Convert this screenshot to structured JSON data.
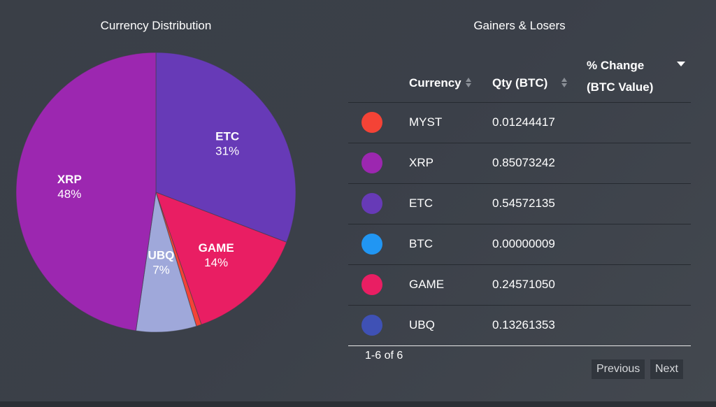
{
  "pie_panel": {
    "title": "Currency Distribution"
  },
  "table_panel": {
    "title": "Gainers & Losers",
    "columns": {
      "currency": "Currency",
      "qty": "Qty (BTC)",
      "change_line1": "% Change",
      "change_line2": "(BTC Value)"
    },
    "rows": [
      {
        "currency": "MYST",
        "qty": "0.01244417",
        "color": "#f44336"
      },
      {
        "currency": "XRP",
        "qty": "0.85073242",
        "color": "#9c27b0"
      },
      {
        "currency": "ETC",
        "qty": "0.54572135",
        "color": "#673ab7"
      },
      {
        "currency": "BTC",
        "qty": "0.00000009",
        "color": "#2196f3"
      },
      {
        "currency": "GAME",
        "qty": "0.24571050",
        "color": "#e91e63"
      },
      {
        "currency": "UBQ",
        "qty": "0.13261353",
        "color": "#3f51b5"
      }
    ],
    "pagination": {
      "count": "1-6 of 6",
      "prev": "Previous",
      "next": "Next"
    }
  },
  "chart_data": {
    "type": "pie",
    "title": "Currency Distribution",
    "slices": [
      {
        "name": "ETC",
        "value": 31,
        "label": "31%",
        "color": "#673ab7"
      },
      {
        "name": "GAME",
        "value": 14,
        "label": "14%",
        "color": "#e91e63"
      },
      {
        "name": "MYST",
        "value": 0.6,
        "label": "",
        "color": "#f44336"
      },
      {
        "name": "UBQ",
        "value": 7,
        "label": "7%",
        "color": "#9fa8da"
      },
      {
        "name": "XRP",
        "value": 48,
        "label": "48%",
        "color": "#9c27b0"
      }
    ]
  }
}
